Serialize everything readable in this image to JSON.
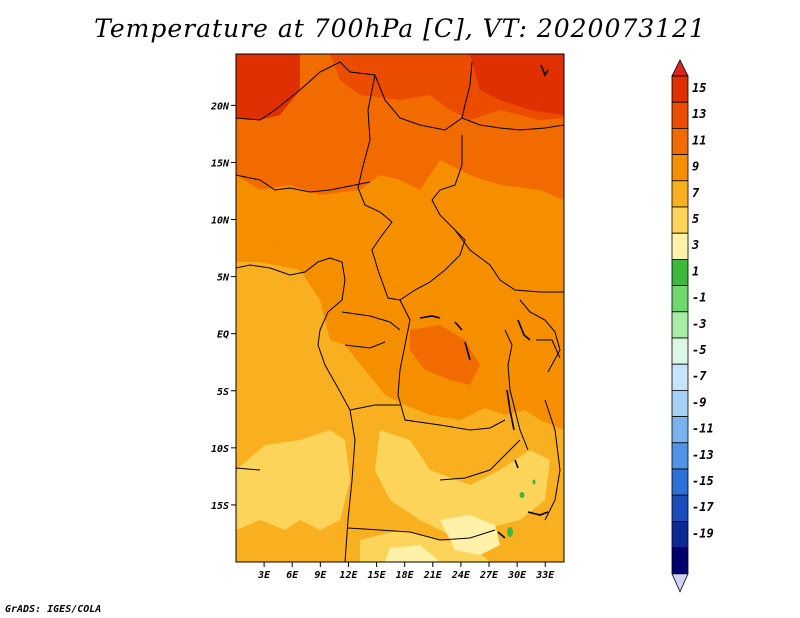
{
  "title": "Temperature at 700hPa [C], VT: 2020073121",
  "credit": "GrADS: IGES/COLA",
  "map": {
    "lon_range": [
      0,
      35
    ],
    "lat_range": [
      -20,
      24.5
    ],
    "lat_labels": [
      "20N",
      "15N",
      "10N",
      "5N",
      "EQ",
      "5S",
      "10S",
      "15S"
    ],
    "lat_values": [
      20,
      15,
      10,
      5,
      0,
      -5,
      -10,
      -15
    ],
    "lon_labels": [
      "3E",
      "6E",
      "9E",
      "12E",
      "15E",
      "18E",
      "21E",
      "24E",
      "27E",
      "30E",
      "33E"
    ],
    "lon_values": [
      3,
      6,
      9,
      12,
      15,
      18,
      21,
      24,
      27,
      30,
      33
    ]
  },
  "colorbar": {
    "labels": [
      "15",
      "13",
      "11",
      "9",
      "7",
      "5",
      "3",
      "1",
      "-1",
      "-3",
      "-5",
      "-7",
      "-9",
      "-11",
      "-13",
      "-15",
      "-17",
      "-19"
    ],
    "colors": [
      "#e02f00",
      "#eb4c00",
      "#f26b00",
      "#f58f00",
      "#f9b020",
      "#fcd45a",
      "#fff2a8",
      "#3cb83c",
      "#6ed86e",
      "#a6eda6",
      "#dcf7e6",
      "#c8e4fa",
      "#a6d0f6",
      "#7ab4ee",
      "#4f94e6",
      "#2c70d8",
      "#1a4cbc",
      "#0c2a96",
      "#00006e"
    ],
    "top_color": "#d8241a",
    "bottom_color": "#d2d2f4"
  }
}
